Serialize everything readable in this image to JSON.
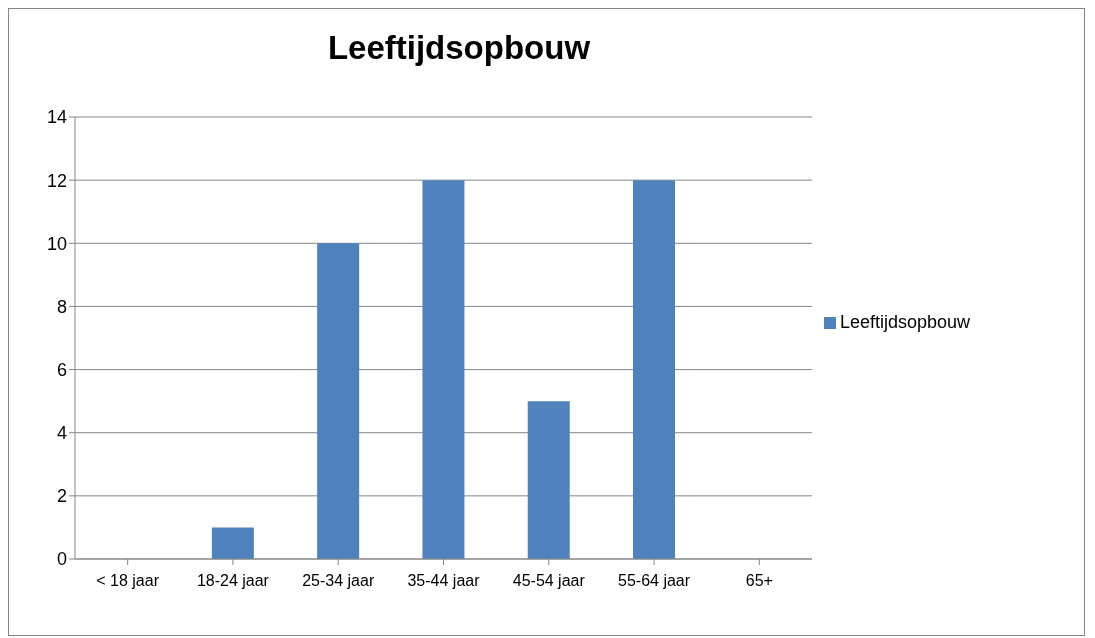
{
  "chart_data": {
    "type": "bar",
    "title": "Leeftijdsopbouw",
    "categories": [
      "< 18 jaar",
      "18-24 jaar",
      "25-34 jaar",
      "35-44 jaar",
      "45-54 jaar",
      "55-64 jaar",
      "65+"
    ],
    "series": [
      {
        "name": "Leeftijdsopbouw",
        "color": "#4f81bd",
        "values": [
          0,
          1,
          10,
          12,
          5,
          12,
          0
        ]
      }
    ],
    "ylim": [
      0,
      14
    ],
    "yticks": [
      0,
      2,
      4,
      6,
      8,
      10,
      12,
      14
    ],
    "grid": "y",
    "legend": "right"
  }
}
